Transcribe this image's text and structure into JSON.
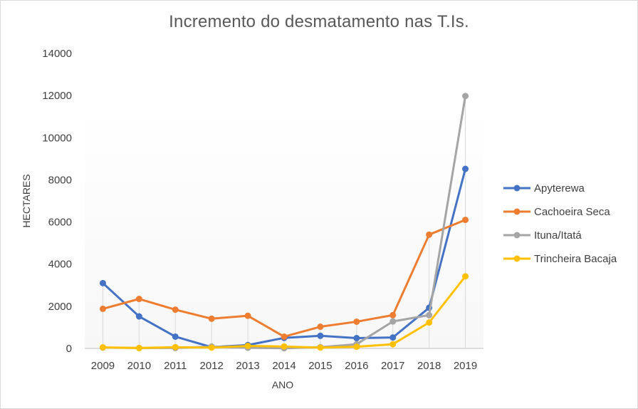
{
  "chart_data": {
    "type": "line",
    "title": "Incremento do desmatamento  nas T.Is.",
    "xlabel": "ANO",
    "ylabel": "HECTARES",
    "categories": [
      "2009",
      "2010",
      "2011",
      "2012",
      "2013",
      "2014",
      "2015",
      "2016",
      "2017",
      "2018",
      "2019"
    ],
    "ylim": [
      0,
      14000
    ],
    "yticks": [
      0,
      2000,
      4000,
      6000,
      8000,
      10000,
      12000,
      14000
    ],
    "legend_position": "right",
    "grid": false,
    "series": [
      {
        "name": "Apyterewa",
        "color": "#4472C4",
        "values": [
          3100,
          1520,
          560,
          60,
          160,
          500,
          600,
          490,
          520,
          1930,
          8520
        ]
      },
      {
        "name": "Cachoeira Seca",
        "color": "#ED7D31",
        "values": [
          1880,
          2350,
          1840,
          1410,
          1550,
          560,
          1030,
          1270,
          1580,
          5400,
          6100
        ]
      },
      {
        "name": "Ituna/Itatá",
        "color": "#A5A5A5",
        "values": [
          40,
          20,
          20,
          90,
          30,
          10,
          60,
          200,
          1280,
          1580,
          11980
        ]
      },
      {
        "name": "Trincheira Bacaja",
        "color": "#FFC000",
        "values": [
          50,
          20,
          60,
          40,
          120,
          90,
          40,
          80,
          200,
          1230,
          3420
        ]
      }
    ]
  }
}
